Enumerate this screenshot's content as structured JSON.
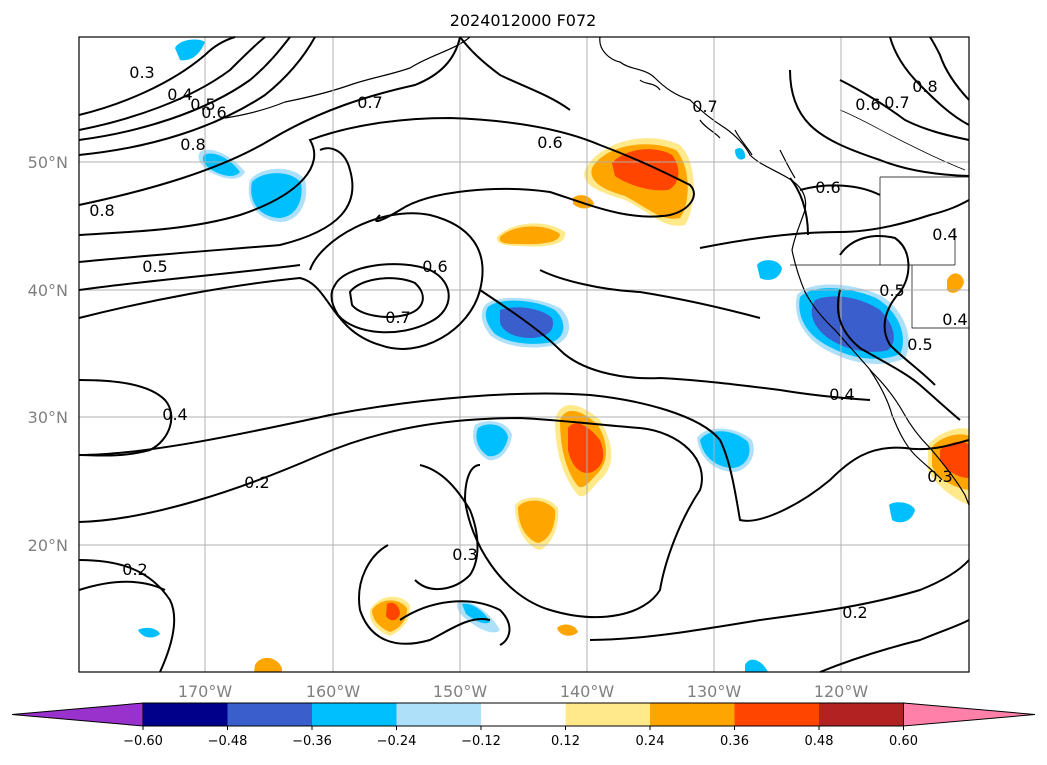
{
  "title": "2024012000 F072",
  "lat_labels": [
    "50°N",
    "40°N",
    "30°N",
    "20°N"
  ],
  "lon_labels": [
    "170°W",
    "160°W",
    "150°W",
    "140°W",
    "130°W",
    "120°W"
  ],
  "contour_labels": [
    "0.3",
    "0.4",
    "0.5",
    "0.6",
    "0.7",
    "0.8",
    "0.8",
    "0.7",
    "0.6",
    "0.5",
    "0.6",
    "0.7",
    "0.6",
    "0.6",
    "0.7",
    "0.8",
    "0.4",
    "0.5",
    "0.4",
    "0.5",
    "0.4",
    "0.4",
    "0.2",
    "0.3",
    "0.3",
    "0.2",
    "0.2"
  ],
  "colorbar": {
    "ticks": [
      "−0.60",
      "−0.48",
      "−0.36",
      "−0.24",
      "−0.12",
      "0.12",
      "0.24",
      "0.36",
      "0.48",
      "0.60"
    ],
    "colors": [
      "#9932cc",
      "#00008b",
      "#3a5fcd",
      "#00bfff",
      "#afe0fa",
      "#ffffff",
      "#ffe98a",
      "#ffa500",
      "#ff4500",
      "#b22222",
      "#ff80a8"
    ]
  }
}
